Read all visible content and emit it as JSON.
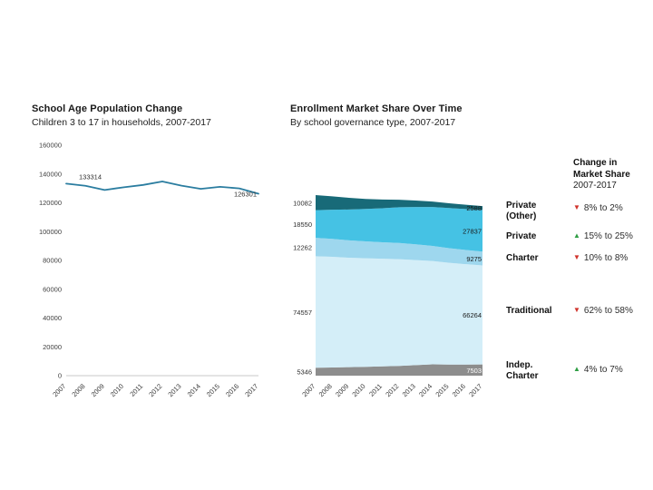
{
  "chart_data": [
    {
      "type": "line",
      "title": "School Age Population Change",
      "subtitle": "Children 3 to 17 in households, 2007-2017",
      "categories": [
        "2007",
        "2008",
        "2009",
        "2010",
        "2011",
        "2012",
        "2013",
        "2014",
        "2015",
        "2016",
        "2017"
      ],
      "values": [
        133314,
        131800,
        128900,
        130800,
        132400,
        134800,
        131900,
        129700,
        131100,
        130000,
        126301
      ],
      "xlabel": "",
      "ylabel": "",
      "ylim": [
        0,
        160000
      ],
      "ytick_step": 20000,
      "grid": false,
      "legend_position": "none",
      "line_color": "#2b7da0",
      "first_point_label": "133314",
      "last_point_label": "126301"
    },
    {
      "type": "area",
      "title": "Enrollment Market Share Over Time",
      "subtitle": "By school governance type, 2007-2017",
      "categories": [
        "2007",
        "2008",
        "2009",
        "2010",
        "2011",
        "2012",
        "2013",
        "2014",
        "2015",
        "2016",
        "2017"
      ],
      "stack_order": "bottom-to-top",
      "series": [
        {
          "name": "Indep. Charter",
          "color": "#8d8d8d",
          "values": [
            5346,
            5500,
            5700,
            5950,
            6200,
            6550,
            7050,
            7600,
            7420,
            7460,
            7503
          ],
          "start_label": "5346",
          "end_label": "7503",
          "end_label_color": "#ffffff",
          "change": {
            "direction": "up",
            "glyph": "▲",
            "label": "4% to 7%",
            "color": "#2f9e44"
          }
        },
        {
          "name": "Traditional",
          "color": "#d4eef8",
          "values": [
            74557,
            74000,
            73200,
            72600,
            72000,
            71400,
            70300,
            69100,
            68100,
            67100,
            66264
          ],
          "start_label": "74557",
          "end_label": "66264",
          "end_label_color": "#1a1a1a",
          "change": {
            "direction": "down",
            "glyph": "▼",
            "label": "62% to 58%",
            "color": "#d0342c"
          }
        },
        {
          "name": "Charter",
          "color": "#9ed7ee",
          "values": [
            12262,
            12000,
            11650,
            11300,
            11000,
            10800,
            10500,
            10100,
            9800,
            9500,
            9275
          ],
          "start_label": "12262",
          "end_label": "9275",
          "end_label_color": "#1a1a1a",
          "change": {
            "direction": "down",
            "glyph": "▼",
            "label": "10% to 8%",
            "color": "#d0342c"
          }
        },
        {
          "name": "Private",
          "color": "#45c2e4",
          "values": [
            18550,
            19500,
            20600,
            21700,
            22800,
            23900,
            25000,
            26000,
            26800,
            27400,
            27837
          ],
          "start_label": "18550",
          "end_label": "27837",
          "end_label_color": "#1a1a1a",
          "change": {
            "direction": "up",
            "glyph": "▲",
            "label": "15% to 25%",
            "color": "#2f9e44"
          }
        },
        {
          "name": "Private (Other)",
          "color": "#186a78",
          "values": [
            10082,
            9000,
            7800,
            6700,
            5800,
            5000,
            4300,
            3700,
            3200,
            2850,
            2588
          ],
          "start_label": "10082",
          "end_label": "2588",
          "end_label_color": "#1a1a1a",
          "change": {
            "direction": "down",
            "glyph": "▼",
            "label": "8% to 2%",
            "color": "#d0342c"
          }
        }
      ]
    }
  ],
  "change_header": {
    "line1": "Change in Market Share",
    "line2": "2007-2017"
  }
}
